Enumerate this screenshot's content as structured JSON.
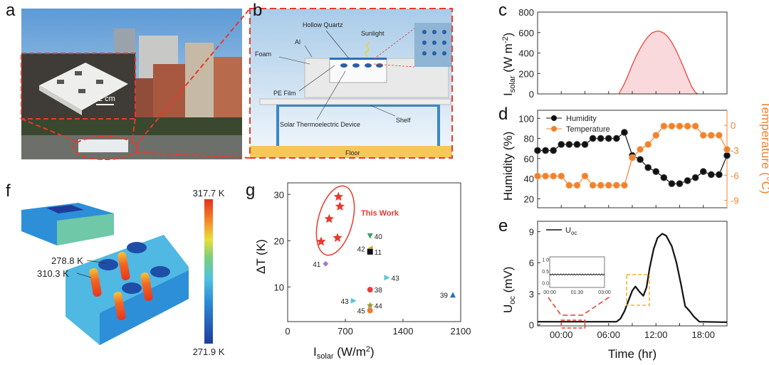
{
  "panels": {
    "a": {
      "letter": "a",
      "scale_bar": "2 cm"
    },
    "b": {
      "letter": "b",
      "labels": {
        "hollow_quartz": "Hollow Quartz",
        "sunlight": "Sunlight",
        "al": "Al",
        "foam": "Foam",
        "pe_film": "PE Film",
        "device": "Solar Thermoelectric Device",
        "shelf": "Shelf",
        "floor": "Floor"
      }
    },
    "c": {
      "letter": "c"
    },
    "d": {
      "letter": "d"
    },
    "e": {
      "letter": "e"
    },
    "f": {
      "letter": "f",
      "colorbar_max": "317.7 K",
      "colorbar_min": "271.9 K",
      "annotation_1": "278.8 K",
      "annotation_2": "310.3 K"
    },
    "g": {
      "letter": "g"
    }
  },
  "colors": {
    "dashed_red": "#e8392b",
    "orange": "#f0822c",
    "solar_fill": "#f9d9dc",
    "solar_line": "#e8392b",
    "inset_box": "#f0b429"
  },
  "chart_data": [
    {
      "id": "c",
      "type": "area",
      "ylabel_main": "I",
      "ylabel_sub": "solar",
      "ylabel_unit": " (W m",
      "ylabel_sup": "-2",
      "ylabel_close": ")",
      "ylim": [
        0,
        800
      ],
      "yticks": [
        "0",
        "200",
        "400",
        "600",
        "800"
      ],
      "xlim_hours": [
        -3,
        21
      ],
      "points": [
        [
          7.3,
          0
        ],
        [
          8,
          100
        ],
        [
          8.5,
          190
        ],
        [
          9,
          285
        ],
        [
          9.5,
          370
        ],
        [
          10,
          445
        ],
        [
          10.5,
          510
        ],
        [
          11,
          560
        ],
        [
          11.5,
          597
        ],
        [
          12,
          612
        ],
        [
          12.3,
          615
        ],
        [
          12.5,
          612
        ],
        [
          13,
          595
        ],
        [
          13.5,
          560
        ],
        [
          14,
          505
        ],
        [
          14.5,
          435
        ],
        [
          15,
          350
        ],
        [
          15.5,
          260
        ],
        [
          16,
          165
        ],
        [
          16.5,
          75
        ],
        [
          17,
          15
        ],
        [
          17.3,
          0
        ]
      ]
    },
    {
      "id": "d",
      "type": "line",
      "ylabel": "Humidity (%)",
      "ylabel_right": "Temperature (°C)",
      "ylim": [
        11,
        108
      ],
      "yticks": [
        "20",
        "40",
        "60",
        "80",
        "100"
      ],
      "ylim_right": [
        -9.9,
        1.8
      ],
      "yticks_right": [
        "-9",
        "-6",
        "-3",
        "0"
      ],
      "legend": "top-left",
      "x_hours": [
        -3,
        -2,
        -1,
        0,
        1,
        2,
        3,
        4,
        5,
        6,
        7,
        8,
        9,
        10,
        11,
        12,
        13,
        14,
        15,
        16,
        17,
        18,
        19,
        20,
        21
      ],
      "series": [
        {
          "name": "Humidity",
          "color": "#111111",
          "axis": "left",
          "values": [
            68,
            68,
            68,
            74,
            74,
            74,
            74,
            80,
            80,
            80,
            80,
            86,
            63,
            59,
            51,
            47,
            41,
            35,
            35,
            38,
            41,
            47,
            44,
            44,
            63
          ]
        },
        {
          "name": "Temperature",
          "color": "#f0822c",
          "axis": "right",
          "values": [
            -6.1,
            -6.1,
            -6.1,
            -6.1,
            -7.2,
            -7.2,
            -6.1,
            -7.2,
            -7.2,
            -7.2,
            -7.2,
            -7.2,
            -3.9,
            -2.9,
            -2.3,
            -1.2,
            -0.1,
            -0.1,
            -0.1,
            -0.1,
            -0.1,
            -1.2,
            -1.2,
            -1.2,
            -2.9
          ]
        }
      ]
    },
    {
      "id": "e",
      "type": "line",
      "ylabel_main": "U",
      "ylabel_sub": "oc",
      "ylabel_unit": " (mV)",
      "xlabel": "Time (hr)",
      "ylim": [
        -0.1,
        10
      ],
      "yticks": [
        "0",
        "3",
        "6",
        "9"
      ],
      "xticks": [
        "00:00",
        "06:00",
        "12:00",
        "18:00"
      ],
      "legend_main": "U",
      "legend_sub": "oc",
      "series": [
        {
          "name": "Uoc",
          "points": [
            [
              -3,
              0.3
            ],
            [
              7,
              0.3
            ],
            [
              7.5,
              0.6
            ],
            [
              8,
              1.3
            ],
            [
              8.5,
              2.3
            ],
            [
              9,
              3.3
            ],
            [
              9.4,
              3.7
            ],
            [
              9.9,
              3.2
            ],
            [
              10.4,
              2.8
            ],
            [
              10.8,
              3.6
            ],
            [
              11.2,
              5.5
            ],
            [
              11.7,
              7.3
            ],
            [
              12.2,
              8.4
            ],
            [
              12.8,
              8.8
            ],
            [
              13.3,
              8.6
            ],
            [
              14,
              7.6
            ],
            [
              14.6,
              6
            ],
            [
              15.2,
              3.8
            ],
            [
              15.7,
              1.8
            ],
            [
              16.3,
              1.3
            ],
            [
              16.8,
              0.8
            ],
            [
              17.5,
              0.3
            ],
            [
              21,
              0.25
            ]
          ]
        }
      ],
      "inset": {
        "yticks": [
          "1.0",
          "0.5",
          "0.0"
        ],
        "xticks": [
          "00:00",
          "01:30",
          "03:00"
        ],
        "level": 0.35,
        "ylim": [
          -0.2,
          1.1
        ]
      }
    },
    {
      "id": "g",
      "type": "scatter",
      "ylabel": "ΔT (K)",
      "xlabel_main": "I",
      "xlabel_sub": "solar",
      "xlabel_unit": " (W/m",
      "xlabel_sup": "2",
      "xlabel_close": ")",
      "xlim": [
        0,
        2100
      ],
      "ylim": [
        2.5,
        32.5
      ],
      "xticks": [
        "0",
        "700",
        "1400",
        "2100"
      ],
      "yticks": [
        "10",
        "20",
        "30"
      ],
      "this_work_label": "This Work",
      "this_work": [
        [
          617,
          29.5
        ],
        [
          634,
          27.4
        ],
        [
          504,
          24.7
        ],
        [
          605,
          20.6
        ],
        [
          406,
          19.8
        ]
      ],
      "references": [
        {
          "label": "40",
          "x": 1000,
          "y": 21.0,
          "marker": "triangle-down",
          "color": "#3aa56a"
        },
        {
          "label": "42",
          "x": 1000,
          "y": 18.3,
          "marker": "triangle-left",
          "color": "#c9a24a"
        },
        {
          "label": "11",
          "x": 1000,
          "y": 17.6,
          "marker": "square",
          "color": "#111111"
        },
        {
          "label": "41",
          "x": 461,
          "y": 15.0,
          "marker": "diamond",
          "color": "#9b7fd1"
        },
        {
          "label": "43",
          "x": 1206,
          "y": 12.0,
          "marker": "triangle-right",
          "color": "#55c7d6"
        },
        {
          "label": "38",
          "x": 1000,
          "y": 9.4,
          "marker": "circle",
          "color": "#ee3b3b"
        },
        {
          "label": "39",
          "x": 2005,
          "y": 8.3,
          "marker": "triangle-up",
          "color": "#2f6db3"
        },
        {
          "label": "43",
          "x": 801,
          "y": 7.0,
          "marker": "triangle-right",
          "color": "#55c7d6"
        },
        {
          "label": "44",
          "x": 1000,
          "y": 6.0,
          "marker": "star",
          "color": "#9a9a3a"
        },
        {
          "label": "45",
          "x": 1000,
          "y": 4.9,
          "marker": "hexagon",
          "color": "#f07a30"
        }
      ]
    }
  ]
}
